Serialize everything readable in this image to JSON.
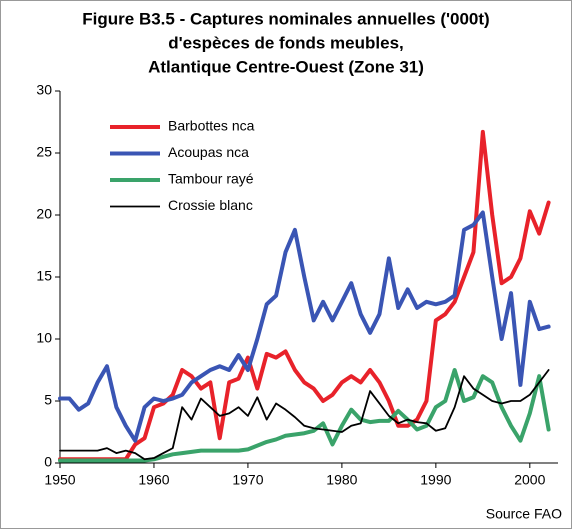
{
  "chart_data": {
    "type": "line",
    "title": [
      "Figure B3.5 - Captures nominales annuelles ('000t)",
      "d'espèces de fonds meubles,",
      "Atlantique Centre-Ouest  (Zone 31)"
    ],
    "source": "Source FAO",
    "x": [
      1950,
      1951,
      1952,
      1953,
      1954,
      1955,
      1956,
      1957,
      1958,
      1959,
      1960,
      1961,
      1962,
      1963,
      1964,
      1965,
      1966,
      1967,
      1968,
      1969,
      1970,
      1971,
      1972,
      1973,
      1974,
      1975,
      1976,
      1977,
      1978,
      1979,
      1980,
      1981,
      1982,
      1983,
      1984,
      1985,
      1986,
      1987,
      1988,
      1989,
      1990,
      1991,
      1992,
      1993,
      1994,
      1995,
      1996,
      1997,
      1998,
      1999,
      2000,
      2001,
      2002
    ],
    "series": [
      {
        "name": "Barbottes nca",
        "color": "#e8222a",
        "width": 4,
        "values": [
          0.3,
          0.3,
          0.3,
          0.3,
          0.3,
          0.3,
          0.3,
          0.3,
          1.5,
          2,
          4.5,
          4.8,
          5.5,
          7.5,
          7,
          6,
          6.5,
          2,
          6.5,
          6.8,
          8.5,
          6,
          8.8,
          8.5,
          9,
          7.5,
          6.5,
          6,
          5,
          5.5,
          6.5,
          7,
          6.5,
          7.5,
          6.5,
          5,
          3,
          3,
          3.5,
          5,
          11.5,
          12,
          13,
          15,
          17,
          26.7,
          20,
          14.5,
          15,
          16.5,
          20.3,
          18.5,
          21
        ]
      },
      {
        "name": "Acoupas nca",
        "color": "#3a55b4",
        "width": 4,
        "values": [
          5.2,
          5.2,
          4.3,
          4.8,
          6.5,
          7.8,
          4.5,
          3,
          1.8,
          4.5,
          5.2,
          5,
          5.2,
          5.5,
          6.5,
          7,
          7.5,
          7.8,
          7.5,
          8.7,
          7.5,
          10,
          12.8,
          13.5,
          17,
          18.8,
          15,
          11.5,
          13,
          11.5,
          13,
          14.5,
          12,
          10.5,
          12,
          16.5,
          12.5,
          14,
          12.5,
          13,
          12.8,
          13,
          13.5,
          18.8,
          19.2,
          20.2,
          15,
          10,
          13.7,
          6.3,
          13,
          10.8,
          11
        ]
      },
      {
        "name": "Tambour rayé",
        "color": "#3aa36a",
        "width": 4,
        "values": [
          0.2,
          0.2,
          0.2,
          0.2,
          0.2,
          0.2,
          0.2,
          0.2,
          0.2,
          0.2,
          0.3,
          0.5,
          0.7,
          0.8,
          0.9,
          1,
          1,
          1,
          1,
          1,
          1.1,
          1.4,
          1.7,
          1.9,
          2.2,
          2.3,
          2.4,
          2.6,
          3.2,
          1.5,
          3,
          4.3,
          3.5,
          3.3,
          3.4,
          3.4,
          4.2,
          3.5,
          2.7,
          3,
          4.5,
          5,
          7.5,
          5,
          5.3,
          7,
          6.5,
          4.5,
          3,
          1.8,
          4,
          7,
          2.7
        ]
      },
      {
        "name": "Crossie blanc",
        "color": "#000000",
        "width": 1.8,
        "values": [
          1,
          1,
          1,
          1,
          1,
          1.2,
          0.8,
          1,
          0.8,
          0.3,
          0.4,
          0.8,
          1.2,
          4.5,
          3.5,
          5.2,
          4.5,
          3.8,
          4,
          4.5,
          3.8,
          5.3,
          3.5,
          4.8,
          4.3,
          3.7,
          3,
          2.8,
          2.7,
          2.6,
          2.5,
          3,
          3.2,
          5.8,
          4.8,
          3.8,
          3.2,
          3.5,
          3.3,
          3.2,
          2.6,
          2.8,
          4.5,
          7,
          6,
          5.5,
          5,
          4.8,
          5,
          5,
          5.5,
          6.5,
          7.5
        ]
      }
    ],
    "xlim": [
      1950,
      2003
    ],
    "ylim": [
      0,
      30
    ],
    "xticks": [
      1950,
      1960,
      1970,
      1980,
      1990,
      2000
    ],
    "yticks": [
      0,
      5,
      10,
      15,
      20,
      25,
      30
    ],
    "legend": "upper left"
  }
}
